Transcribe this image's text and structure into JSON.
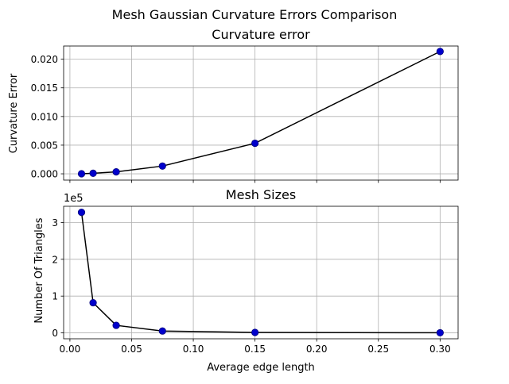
{
  "figure": {
    "suptitle": "Mesh Gaussian Curvature Errors Comparison"
  },
  "chart_data": [
    {
      "type": "line",
      "title": "Curvature error",
      "xlabel": "",
      "ylabel": "Curvature Error",
      "x": [
        0.0094,
        0.0188,
        0.0375,
        0.075,
        0.15,
        0.3
      ],
      "series": [
        {
          "values": [
            1e-05,
            9e-05,
            0.00034,
            0.00135,
            0.00533,
            0.02135
          ]
        }
      ],
      "xlim": [
        -0.0051,
        0.3146
      ],
      "ylim": [
        -0.0011,
        0.0223
      ],
      "yticks": [
        0.0,
        0.005,
        0.01,
        0.015,
        0.02
      ],
      "ytick_labels": [
        "0.000",
        "0.005",
        "0.010",
        "0.015",
        "0.020"
      ],
      "xticks": [
        0.0,
        0.05,
        0.1,
        0.15,
        0.2,
        0.25,
        0.3
      ],
      "grid": true,
      "marker_color": "#0000cc",
      "line_color": "#000000"
    },
    {
      "type": "line",
      "title": "Mesh Sizes",
      "xlabel": "Average edge length",
      "ylabel": "Number Of Triangles",
      "y_offset_label": "1e5",
      "x": [
        0.0094,
        0.0188,
        0.0375,
        0.075,
        0.15,
        0.3
      ],
      "series": [
        {
          "values": [
            327680,
            81920,
            20480,
            5120,
            1280,
            320
          ]
        }
      ],
      "xlim": [
        -0.0051,
        0.3146
      ],
      "ylim": [
        -16000,
        344000
      ],
      "yticks": [
        0,
        100000,
        200000,
        300000
      ],
      "ytick_labels": [
        "0",
        "1",
        "2",
        "3"
      ],
      "xticks": [
        0.0,
        0.05,
        0.1,
        0.15,
        0.2,
        0.25,
        0.3
      ],
      "xtick_labels": [
        "0.00",
        "0.05",
        "0.10",
        "0.15",
        "0.20",
        "0.25",
        "0.30"
      ],
      "grid": true,
      "marker_color": "#0000cc",
      "line_color": "#000000"
    }
  ]
}
